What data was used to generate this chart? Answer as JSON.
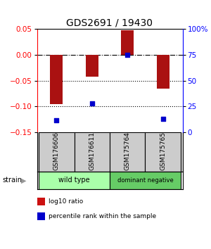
{
  "title": "GDS2691 / 19430",
  "samples": [
    "GSM176606",
    "GSM176611",
    "GSM175764",
    "GSM175765"
  ],
  "log10_ratio": [
    -0.095,
    -0.042,
    0.047,
    -0.065
  ],
  "percentile_rank": [
    12,
    28,
    75,
    13
  ],
  "ylim_left": [
    -0.15,
    0.05
  ],
  "ylim_right": [
    0,
    100
  ],
  "yticks_left": [
    -0.15,
    -0.1,
    -0.05,
    0.0,
    0.05
  ],
  "yticks_right": [
    0,
    25,
    50,
    75,
    100
  ],
  "ytick_labels_right": [
    "0",
    "25",
    "50",
    "75",
    "100%"
  ],
  "hline_dashed": 0.0,
  "hlines_dotted": [
    -0.05,
    -0.1
  ],
  "bar_color": "#aa1111",
  "scatter_color": "#0000cc",
  "strain_groups": [
    {
      "label": "wild type",
      "indices": [
        0,
        1
      ],
      "color": "#aaffaa"
    },
    {
      "label": "dominant negative",
      "indices": [
        2,
        3
      ],
      "color": "#66cc66"
    }
  ],
  "legend_items": [
    {
      "color": "#cc1111",
      "label": "log10 ratio"
    },
    {
      "color": "#0000cc",
      "label": "percentile rank within the sample"
    }
  ],
  "strain_label": "strain",
  "title_fontsize": 10,
  "tick_fontsize": 7.5,
  "label_fontsize": 7.5
}
